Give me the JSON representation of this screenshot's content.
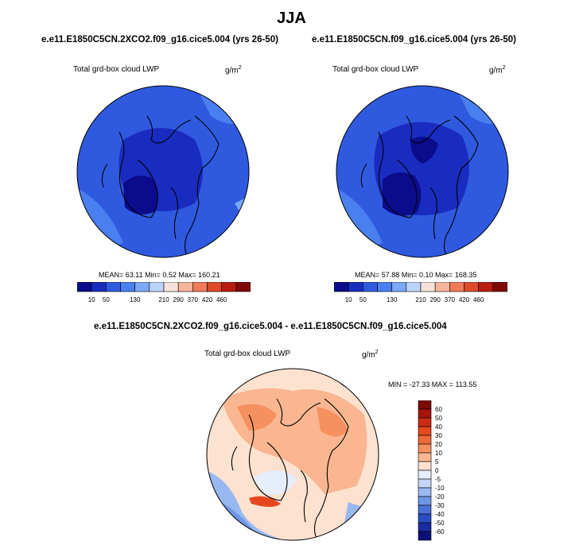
{
  "header": {
    "title": "JJA"
  },
  "panels": [
    {
      "run": "e.e11.E1850C5CN.2XCO2.f09_g16.cice5.004 (yrs 26-50)",
      "variable": "Total grd-box cloud LWP",
      "units": "g/m",
      "units_power": "2",
      "stats": "MEAN=  63.11  Min=   0.52  Max= 160.21",
      "colorbar": {
        "labels": [
          "10",
          "50",
          "130",
          "210",
          "290",
          "370",
          "420",
          "460"
        ],
        "colors": [
          "#0a0c8c",
          "#1a2cc0",
          "#2f5ae0",
          "#4a7ff0",
          "#7aa8f7",
          "#b9d4fb",
          "#f6e2d8",
          "#f6b49a",
          "#ef7b5a",
          "#de4a2a",
          "#b81c10",
          "#7c0a05"
        ]
      }
    },
    {
      "run": "e.e11.E1850C5CN.f09_g16.cice5.004 (yrs 26-50)",
      "variable": "Total grd-box cloud LWP",
      "units": "g/m",
      "units_power": "2",
      "stats": "MEAN=  57.88  Min=   0.10  Max= 168.35",
      "colorbar": {
        "labels": [
          "10",
          "50",
          "130",
          "210",
          "290",
          "370",
          "420",
          "460"
        ],
        "colors": [
          "#0a0c8c",
          "#1a2cc0",
          "#2f5ae0",
          "#4a7ff0",
          "#7aa8f7",
          "#b9d4fb",
          "#f6e2d8",
          "#f6b49a",
          "#ef7b5a",
          "#de4a2a",
          "#b81c10",
          "#7c0a05"
        ]
      }
    }
  ],
  "difference": {
    "title": "e.e11.E1850C5CN.2XCO2.f09_g16.cice5.004 - e.e11.E1850C5CN.f09_g16.cice5.004",
    "variable": "Total grd-box cloud LWP",
    "units": "g/m",
    "units_power": "2",
    "stats": "MIN = -27.33 MAX = 113.55",
    "colorbar": {
      "labels": [
        "60",
        "50",
        "40",
        "30",
        "20",
        "10",
        "5",
        "0",
        "-5",
        "-10",
        "-20",
        "-30",
        "-40",
        "-50",
        "-60"
      ],
      "colors": [
        "#7c0a05",
        "#a8140a",
        "#cc2a12",
        "#e5481f",
        "#f0683a",
        "#f6905e",
        "#f9b690",
        "#fde2d0",
        "#e6eefb",
        "#c3d6f7",
        "#98b8f0",
        "#6f95e6",
        "#4a70d8",
        "#2a4cc4",
        "#1a2aa2",
        "#0d1078"
      ]
    }
  },
  "maps": {
    "panel1_palette": [
      "#2f5ae0",
      "#4a7ff0",
      "#1a2cc0",
      "#0a0c8c",
      "#7aa8f7"
    ],
    "diff_palette": [
      "#fde2d0",
      "#f9b690",
      "#f6905e",
      "#e6eefb",
      "#98b8f0",
      "#6f95e6",
      "#e5481f"
    ]
  }
}
